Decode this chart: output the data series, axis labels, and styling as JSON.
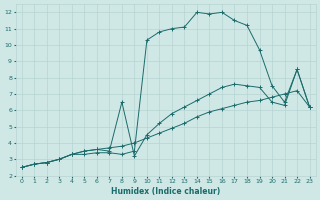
{
  "xlabel": "Humidex (Indice chaleur)",
  "bg_color": "#cfe8e6",
  "line_color": "#1a6b6b",
  "grid_color": "#b8d4d2",
  "xlim": [
    -0.5,
    23.5
  ],
  "ylim": [
    2,
    12.5
  ],
  "xticks": [
    0,
    1,
    2,
    3,
    4,
    5,
    6,
    7,
    8,
    9,
    10,
    11,
    12,
    13,
    14,
    15,
    16,
    17,
    18,
    19,
    20,
    21,
    22,
    23
  ],
  "yticks": [
    2,
    3,
    4,
    5,
    6,
    7,
    8,
    9,
    10,
    11,
    12
  ],
  "line1_x": [
    0,
    1,
    2,
    3,
    4,
    5,
    6,
    7,
    8,
    9,
    10,
    11,
    12,
    13,
    14,
    15,
    16,
    17,
    18,
    19,
    20,
    21,
    22,
    23
  ],
  "line1_y": [
    2.5,
    2.7,
    2.8,
    3.0,
    3.3,
    3.5,
    3.6,
    3.7,
    3.8,
    4.0,
    4.3,
    4.6,
    4.9,
    5.2,
    5.6,
    5.9,
    6.1,
    6.3,
    6.5,
    6.6,
    6.8,
    7.0,
    7.2,
    6.2
  ],
  "line2_x": [
    0,
    1,
    2,
    3,
    4,
    5,
    6,
    7,
    8,
    9,
    10,
    11,
    12,
    13,
    14,
    15,
    16,
    17,
    18,
    19,
    20,
    21,
    22,
    23
  ],
  "line2_y": [
    2.5,
    2.7,
    2.8,
    3.0,
    3.3,
    3.3,
    3.4,
    3.4,
    3.3,
    3.5,
    10.3,
    10.8,
    11.0,
    11.1,
    12.0,
    11.9,
    12.0,
    11.5,
    11.2,
    9.7,
    7.5,
    6.5,
    8.5,
    6.2
  ],
  "line3_x": [
    0,
    1,
    2,
    3,
    4,
    5,
    6,
    7,
    8,
    9,
    10,
    11,
    12,
    13,
    14,
    15,
    16,
    17,
    18,
    19,
    20,
    21,
    22,
    23
  ],
  "line3_y": [
    2.5,
    2.7,
    2.8,
    3.0,
    3.3,
    3.5,
    3.6,
    3.5,
    6.5,
    3.2,
    4.5,
    5.2,
    5.8,
    6.2,
    6.6,
    7.0,
    7.4,
    7.6,
    7.5,
    7.4,
    6.5,
    6.3,
    8.5,
    6.2
  ]
}
